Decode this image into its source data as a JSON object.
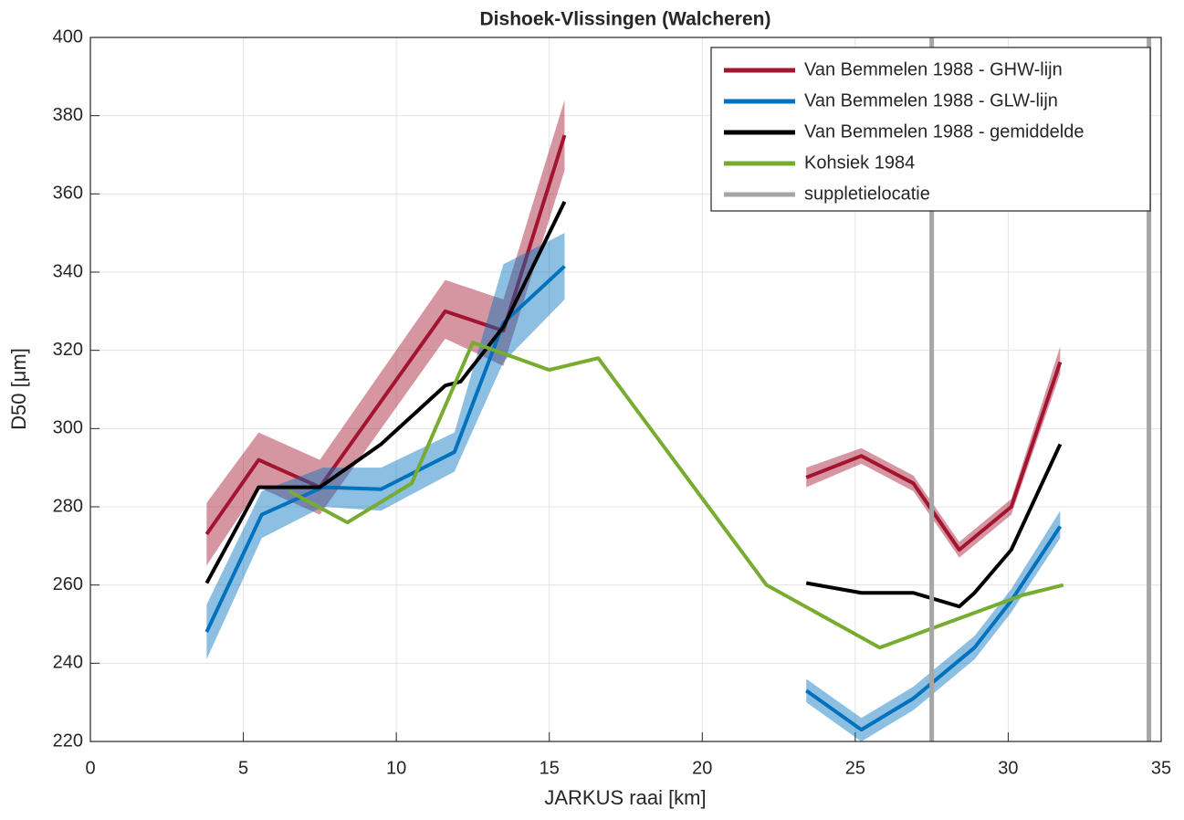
{
  "chart_data": {
    "type": "line",
    "title": "Dishoek-Vlissingen (Walcheren)",
    "xlabel": "JARKUS raai [km]",
    "ylabel": "D50 [μm]",
    "xlim": [
      0,
      35
    ],
    "xticks": [
      0,
      5,
      10,
      15,
      20,
      25,
      30,
      35
    ],
    "ylim": [
      220,
      400
    ],
    "yticks": [
      220,
      240,
      260,
      280,
      300,
      320,
      340,
      360,
      380,
      400
    ],
    "grid": true,
    "legend": "upper right",
    "series": [
      {
        "name": "Van Bemmelen 1988 - GHW-lijn",
        "color": "#a2142f",
        "x": [
          3.8,
          5.5,
          7.5,
          11.6,
          13.5,
          15.5,
          null,
          23.4,
          25.2,
          26.9,
          28.4,
          30.1,
          31.7
        ],
        "values": [
          273,
          292,
          285,
          330,
          325,
          375,
          null,
          287.5,
          293,
          286,
          269,
          280,
          317
        ],
        "lower": [
          265,
          285,
          278,
          323,
          316,
          366,
          null,
          285,
          291,
          284,
          267,
          278,
          314
        ],
        "upper": [
          281,
          299,
          292,
          338,
          333,
          384,
          null,
          290,
          295,
          288,
          271,
          282,
          321
        ]
      },
      {
        "name": "Van Bemmelen 1988 - GLW-lijn",
        "color": "#0072bd",
        "x": [
          3.8,
          5.6,
          7.6,
          9.5,
          11.9,
          13.5,
          15.5,
          null,
          23.4,
          25.2,
          26.9,
          28.9,
          30.1,
          31.7
        ],
        "values": [
          248,
          278,
          285,
          284.5,
          294,
          327,
          341.5,
          null,
          233,
          223,
          231,
          244,
          256,
          275
        ],
        "lower": [
          241,
          272,
          280,
          279,
          289,
          317,
          333,
          null,
          230,
          220,
          228,
          241,
          253,
          272
        ],
        "upper": [
          255,
          284,
          290,
          290,
          299,
          342,
          350,
          null,
          236,
          226,
          234,
          247,
          259,
          279
        ]
      },
      {
        "name": "Van Bemmelen 1988 - gemiddelde",
        "color": "#000000",
        "x": [
          3.8,
          5.5,
          7.5,
          9.5,
          11.6,
          12.1,
          13.5,
          15.5,
          null,
          23.4,
          25.2,
          26.9,
          28.4,
          28.9,
          30.1,
          31.7
        ],
        "values": [
          260.5,
          285,
          285,
          296,
          311,
          312,
          326,
          358,
          null,
          260.5,
          258,
          258,
          254.5,
          258,
          269,
          296
        ]
      },
      {
        "name": "Kohsiek 1984",
        "color": "#77ac30",
        "x": [
          6.5,
          8.4,
          10.5,
          12.5,
          15,
          16.6,
          22.1,
          25.8,
          30.5,
          31.8
        ],
        "values": [
          284,
          276,
          286,
          322,
          315,
          318,
          260,
          244,
          257.5,
          260
        ]
      },
      {
        "name": "suppletielocatie",
        "color": "#a6a6a6",
        "vlines": [
          27.5,
          34.6
        ]
      }
    ]
  }
}
